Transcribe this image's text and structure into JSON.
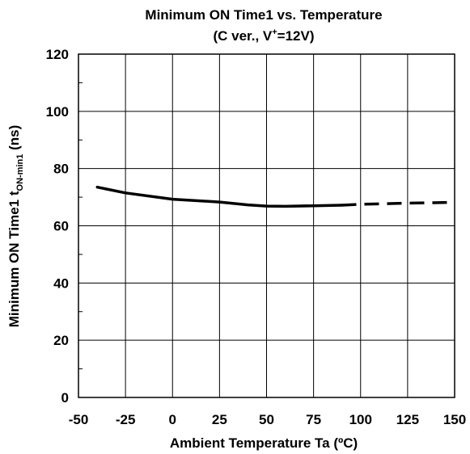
{
  "chart_data": {
    "type": "line",
    "title": "Minimum ON Time1 vs. Temperature",
    "subtitle": {
      "prefix": "(C ver., V",
      "sup": "+",
      "suffix": "=12V)"
    },
    "xlabel": "Ambient Temperature  Ta  (ºC)",
    "ylabel": {
      "main": "Minimum ON Time1  t",
      "sub": "ON-min1",
      "unit": "  (ns)"
    },
    "xlim": [
      -50,
      150
    ],
    "ylim": [
      0,
      120
    ],
    "xticks": [
      "-50",
      "-25",
      "0",
      "25",
      "50",
      "75",
      "100",
      "125",
      "150"
    ],
    "yticks": [
      "0",
      "20",
      "40",
      "60",
      "80",
      "100",
      "120"
    ],
    "grid": true,
    "series": [
      {
        "style": "solid",
        "x": [
          -40,
          -25,
          0,
          25,
          40,
          50,
          60,
          75,
          90
        ],
        "y": [
          73.5,
          71.5,
          69.3,
          68.3,
          67.3,
          66.9,
          66.8,
          67.0,
          67.2
        ]
      },
      {
        "style": "dashed",
        "x": [
          90,
          100,
          125,
          150
        ],
        "y": [
          67.2,
          67.5,
          67.9,
          68.2
        ]
      }
    ]
  }
}
